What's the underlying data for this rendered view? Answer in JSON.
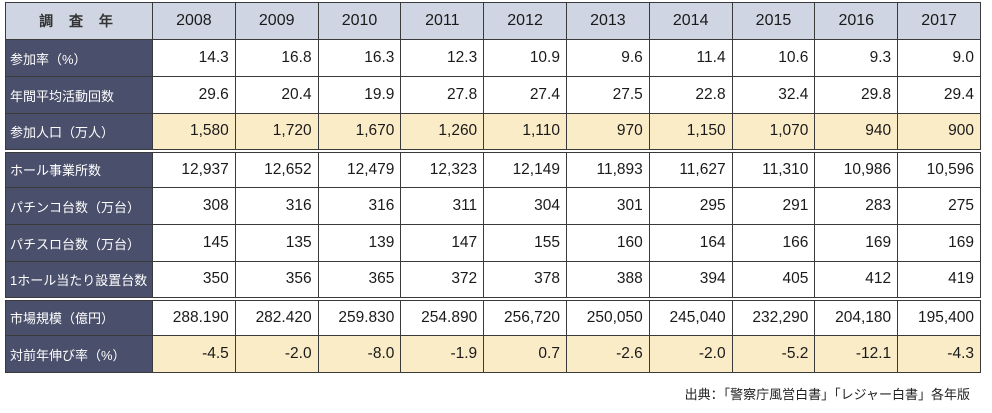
{
  "table": {
    "corner_label": "調 査 年",
    "years": [
      "2008",
      "2009",
      "2010",
      "2011",
      "2012",
      "2013",
      "2014",
      "2015",
      "2016",
      "2017"
    ],
    "rows": [
      {
        "label": "参加率（%）",
        "highlight": false,
        "values": [
          "14.3",
          "16.8",
          "16.3",
          "12.3",
          "10.9",
          "9.6",
          "11.4",
          "10.6",
          "9.3",
          "9.0"
        ]
      },
      {
        "label": "年間平均活動回数",
        "highlight": false,
        "values": [
          "29.6",
          "20.4",
          "19.9",
          "27.8",
          "27.4",
          "27.5",
          "22.8",
          "32.4",
          "29.8",
          "29.4"
        ]
      },
      {
        "label": "参加人口（万人）",
        "highlight": true,
        "values": [
          "1,580",
          "1,720",
          "1,670",
          "1,260",
          "1,110",
          "970",
          "1,150",
          "1,070",
          "940",
          "900"
        ]
      },
      {
        "label": "ホール事業所数",
        "highlight": false,
        "values": [
          "12,937",
          "12,652",
          "12,479",
          "12,323",
          "12,149",
          "11,893",
          "11,627",
          "11,310",
          "10,986",
          "10,596"
        ]
      },
      {
        "label": "パチンコ台数（万台）",
        "highlight": false,
        "values": [
          "308",
          "316",
          "316",
          "311",
          "304",
          "301",
          "295",
          "291",
          "283",
          "275"
        ]
      },
      {
        "label": "パチスロ台数（万台）",
        "highlight": false,
        "values": [
          "145",
          "135",
          "139",
          "147",
          "155",
          "160",
          "164",
          "166",
          "169",
          "169"
        ]
      },
      {
        "label": "1ホール当たり設置台数",
        "highlight": false,
        "values": [
          "350",
          "356",
          "365",
          "372",
          "378",
          "388",
          "394",
          "405",
          "412",
          "419"
        ]
      },
      {
        "label": "市場規模（億円）",
        "highlight": false,
        "values": [
          "288.190",
          "282.420",
          "259.830",
          "254.890",
          "256,720",
          "250,050",
          "245,040",
          "232,290",
          "204,180",
          "195,400"
        ]
      },
      {
        "label": "対前年伸び率（%）",
        "highlight": true,
        "values": [
          "-4.5",
          "-2.0",
          "-8.0",
          "-1.9",
          "0.7",
          "-2.6",
          "-2.0",
          "-5.2",
          "-12.1",
          "-4.3"
        ]
      }
    ]
  },
  "source_note": "出典：「警察庁風営白書」「レジャー白書」各年版",
  "colors": {
    "header_bg": "#cfd5e3",
    "label_bg": "#4a4f6b",
    "highlight_bg": "#fbecc8",
    "border": "#3a3a3a"
  },
  "chart_data": {
    "type": "table",
    "columns": [
      "調 査 年",
      "2008",
      "2009",
      "2010",
      "2011",
      "2012",
      "2013",
      "2014",
      "2015",
      "2016",
      "2017"
    ],
    "rows": [
      [
        "参加率（%）",
        "14.3",
        "16.8",
        "16.3",
        "12.3",
        "10.9",
        "9.6",
        "11.4",
        "10.6",
        "9.3",
        "9.0"
      ],
      [
        "年間平均活動回数",
        "29.6",
        "20.4",
        "19.9",
        "27.8",
        "27.4",
        "27.5",
        "22.8",
        "32.4",
        "29.8",
        "29.4"
      ],
      [
        "参加人口（万人）",
        "1,580",
        "1,720",
        "1,670",
        "1,260",
        "1,110",
        "970",
        "1,150",
        "1,070",
        "940",
        "900"
      ],
      [
        "ホール事業所数",
        "12,937",
        "12,652",
        "12,479",
        "12,323",
        "12,149",
        "11,893",
        "11,627",
        "11,310",
        "10,986",
        "10,596"
      ],
      [
        "パチンコ台数（万台）",
        "308",
        "316",
        "316",
        "311",
        "304",
        "301",
        "295",
        "291",
        "283",
        "275"
      ],
      [
        "パチスロ台数（万台）",
        "145",
        "135",
        "139",
        "147",
        "155",
        "160",
        "164",
        "166",
        "169",
        "169"
      ],
      [
        "1ホール当たり設置台数",
        "350",
        "356",
        "365",
        "372",
        "378",
        "388",
        "394",
        "405",
        "412",
        "419"
      ],
      [
        "市場規模（億円）",
        "288.190",
        "282.420",
        "259.830",
        "254.890",
        "256,720",
        "250,050",
        "245,040",
        "232,290",
        "204,180",
        "195,400"
      ],
      [
        "対前年伸び率（%）",
        "-4.5",
        "-2.0",
        "-8.0",
        "-1.9",
        "0.7",
        "-2.6",
        "-2.0",
        "-5.2",
        "-12.1",
        "-4.3"
      ]
    ]
  }
}
